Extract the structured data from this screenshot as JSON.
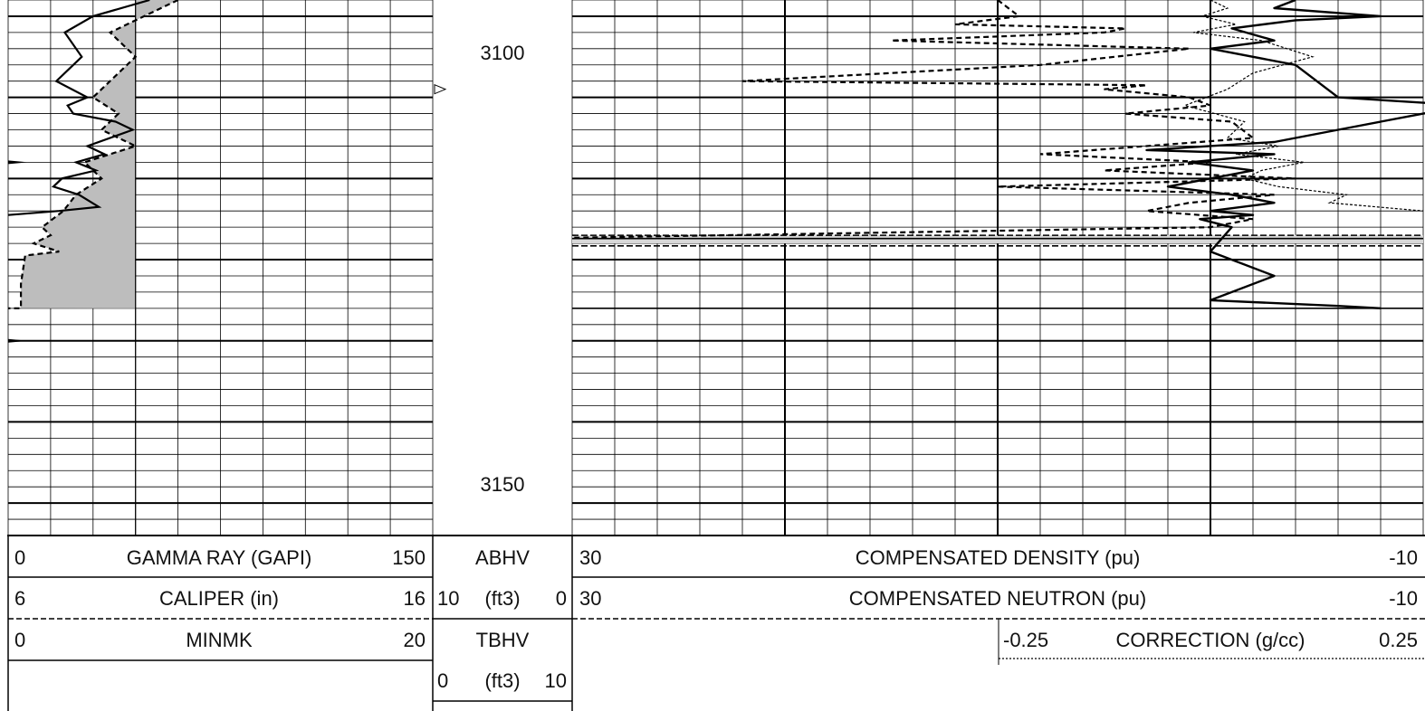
{
  "chart_data": {
    "type": "line",
    "title": "",
    "depth_axis": {
      "range": [
        3088,
        3154
      ],
      "tick_labels": [
        "3100",
        "3150"
      ],
      "tick_values": [
        3100,
        3150
      ]
    },
    "grid": true,
    "track1": {
      "series": [
        {
          "key": "gr",
          "style": "solid",
          "x": [
            50,
            30,
            20,
            26,
            17,
            28,
            21,
            23,
            38,
            44,
            28,
            34,
            24,
            31,
            19,
            16,
            25,
            32,
            18,
            0
          ],
          "y": [
            3088,
            3090,
            3092,
            3095,
            3098,
            3100,
            3101,
            3102,
            3103,
            3104,
            3106,
            3107,
            3108,
            3109,
            3110,
            3111,
            3112,
            3113.5,
            3114,
            3114.5
          ]
        },
        {
          "key": "cal",
          "style": "dashed",
          "x": [
            10.0,
            8.4,
            9.0,
            8.0,
            8.6,
            8.2,
            9.0,
            7.8,
            8.2,
            7.6,
            7.3,
            6.8,
            7.0,
            6.6,
            7.2,
            6.4,
            6.3,
            6.3,
            6.0
          ],
          "y": [
            3088,
            3092,
            3095,
            3100,
            3102,
            3104,
            3106,
            3108,
            3110,
            3112,
            3114,
            3116,
            3117,
            3118,
            3119,
            3119.5,
            3123,
            3126,
            3126
          ]
        }
      ],
      "bit_size_in": 9.0,
      "markers_depth": [
        3108,
        3130
      ],
      "triangle_marker_depth": 3099
    },
    "track3": {
      "density": {
        "style": "dashed",
        "x": [
          10,
          9,
          12,
          4,
          5,
          15,
          1,
          8,
          22,
          3,
          5,
          1,
          0,
          4,
          -1,
          -2,
          8,
          0,
          5,
          -4,
          10,
          -3,
          1,
          3,
          -2,
          0,
          30
        ],
        "y": [
          3088,
          3090,
          3091,
          3091.5,
          3092,
          3093,
          3094,
          3096,
          3098,
          3098.5,
          3099,
          3100,
          3101,
          3102,
          3103,
          3105,
          3107,
          3108,
          3109,
          3110,
          3111,
          3112,
          3113,
          3114,
          3115,
          3116,
          3117.3
        ]
      },
      "neutron": {
        "style": "solid",
        "x": [
          -4,
          -3,
          -8,
          -4,
          -1,
          -3,
          0,
          -4,
          -5,
          -6,
          -12,
          -10,
          -8,
          -6,
          -3,
          3,
          -3,
          1,
          -2,
          0,
          2,
          -1,
          -3,
          0,
          -2,
          0.5,
          -1,
          0,
          -3,
          0,
          -6,
          -8
        ],
        "y": [
          3088,
          3089,
          3090,
          3090.5,
          3091.5,
          3093,
          3094,
          3096,
          3098,
          3100,
          3101,
          3102,
          3103,
          3104,
          3105.5,
          3106.5,
          3107,
          3108,
          3109,
          3110,
          3111,
          3112,
          3113,
          3114,
          3114.5,
          3115,
          3116,
          3119,
          3122,
          3125,
          3125.7,
          3126
        ]
      },
      "correction": {
        "style": "dotted",
        "x_start_fraction": 0.5,
        "x": [
          0.0,
          0.02,
          -0.01,
          0.03,
          -0.02,
          0.06,
          0.12,
          0.05,
          0.02,
          -0.03,
          0.04,
          0.02,
          0.08,
          0.03,
          0.11,
          0.06,
          0.04,
          0.08,
          0.16,
          0.14,
          0.25
        ],
        "y": [
          3088,
          3089,
          3090,
          3091,
          3092,
          3093,
          3095,
          3097,
          3099,
          3101,
          3103,
          3105,
          3106,
          3107,
          3108,
          3109,
          3110,
          3111,
          3112,
          3113,
          3114
        ]
      },
      "shaded_band_depth": [
        3117,
        3118
      ],
      "horizontal_lines_depth": [
        3117.0,
        3117.4,
        3118.3,
        3126.0
      ]
    }
  },
  "header": {
    "track1": {
      "rows": [
        {
          "min": "0",
          "name": "GAMMA RAY (GAPI)",
          "max": "150"
        },
        {
          "min": "6",
          "name": "CALIPER (in)",
          "max": "16"
        },
        {
          "min": "0",
          "name": "MINMK",
          "max": "20"
        }
      ]
    },
    "track2": {
      "abhv": {
        "name": "ABHV",
        "left": "10",
        "unit": "(ft3)",
        "right": "0"
      },
      "tbhv": {
        "name": "TBHV",
        "left": "0",
        "unit": "(ft3)",
        "right": "10"
      }
    },
    "track3": {
      "rows": [
        {
          "min": "30",
          "name": "COMPENSATED DENSITY (pu)",
          "max": "-10"
        },
        {
          "min": "30",
          "name": "COMPENSATED NEUTRON (pu)",
          "max": "-10"
        }
      ],
      "correction": {
        "min": "-0.25",
        "name": "CORRECTION (g/cc)",
        "max": "0.25"
      }
    }
  }
}
